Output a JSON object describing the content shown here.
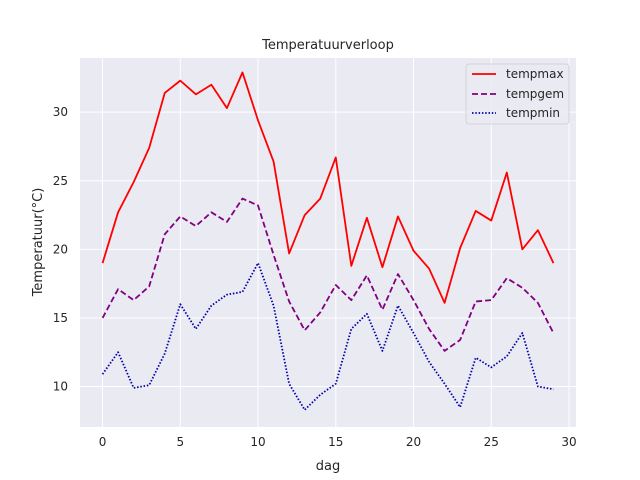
{
  "chart_data": {
    "type": "line",
    "title": "Temperatuurverloop",
    "xlabel": "dag",
    "ylabel": "Temperatuur(°C)",
    "xlim": [
      -1.45,
      30.45
    ],
    "ylim": [
      7.05,
      33.95
    ],
    "xticks": [
      0,
      5,
      10,
      15,
      20,
      25,
      30
    ],
    "yticks": [
      10,
      15,
      20,
      25,
      30
    ],
    "grid": true,
    "background": "#eaeaf2",
    "legend_position": "top-right",
    "x": [
      0,
      1,
      2,
      3,
      4,
      5,
      6,
      7,
      8,
      9,
      10,
      11,
      12,
      13,
      14,
      15,
      16,
      17,
      18,
      19,
      20,
      21,
      22,
      23,
      24,
      25,
      26,
      27,
      28,
      29
    ],
    "series": [
      {
        "name": "tempmax",
        "color": "#ff0000",
        "dash": "solid",
        "values": [
          19.0,
          22.7,
          24.9,
          27.4,
          31.4,
          32.3,
          31.3,
          32.0,
          30.3,
          32.9,
          29.4,
          26.4,
          19.7,
          22.5,
          23.7,
          26.7,
          18.8,
          22.3,
          18.7,
          22.4,
          19.9,
          18.6,
          16.1,
          20.1,
          22.8,
          22.1,
          25.6,
          20.0,
          21.4,
          19.0
        ]
      },
      {
        "name": "tempgem",
        "color": "#800080",
        "dash": "dashed",
        "values": [
          15.0,
          17.1,
          16.3,
          17.3,
          21.1,
          22.4,
          21.7,
          22.7,
          22.0,
          23.7,
          23.2,
          19.6,
          16.2,
          14.1,
          15.4,
          17.4,
          16.3,
          18.1,
          15.6,
          18.2,
          16.3,
          14.2,
          12.6,
          13.4,
          16.2,
          16.3,
          17.9,
          17.2,
          16.1,
          13.9
        ]
      },
      {
        "name": "tempmin",
        "color": "#0000aa",
        "dash": "dotted",
        "values": [
          10.9,
          12.5,
          9.9,
          10.1,
          12.4,
          16.0,
          14.2,
          15.9,
          16.7,
          16.9,
          19.0,
          15.9,
          10.2,
          8.3,
          9.4,
          10.2,
          14.2,
          15.3,
          12.6,
          15.9,
          13.9,
          11.8,
          10.2,
          8.5,
          12.1,
          11.4,
          12.2,
          13.9,
          10.0,
          9.8
        ]
      }
    ]
  }
}
